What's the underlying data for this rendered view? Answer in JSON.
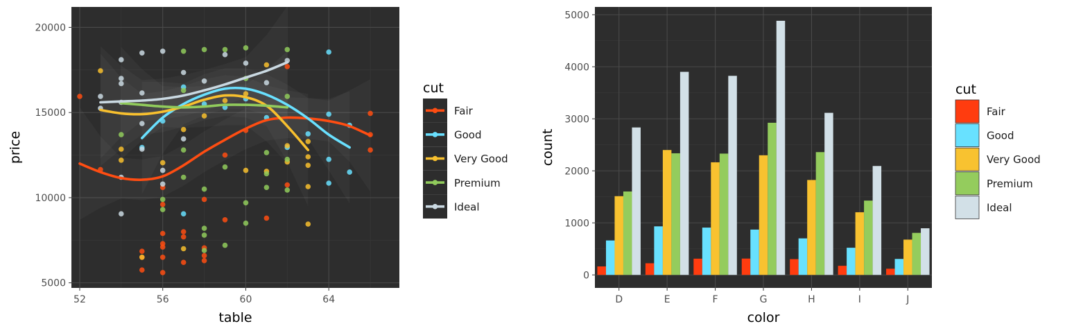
{
  "chart_data": [
    {
      "type": "scatter",
      "xlabel": "table",
      "ylabel": "price",
      "xlim": [
        51.6,
        67.4
      ],
      "ylim": [
        4700,
        21200
      ],
      "xticks": [
        52,
        56,
        60,
        64
      ],
      "yticks": [
        5000,
        10000,
        15000,
        20000
      ],
      "xtick_labels": [
        "52",
        "56",
        "60",
        "64"
      ],
      "ytick_labels": [
        "5000",
        "10000",
        "15000",
        "20000"
      ],
      "grid": true,
      "legend": {
        "title": "cut",
        "position": "right"
      },
      "series": [
        {
          "name": "Fair",
          "color": "#ff4d12",
          "points": [
            [
              52,
              15950
            ],
            [
              53,
              11650
            ],
            [
              55,
              6850
            ],
            [
              55,
              6500
            ],
            [
              55,
              5750
            ],
            [
              56,
              7900
            ],
            [
              56,
              7300
            ],
            [
              56,
              7100
            ],
            [
              56,
              6500
            ],
            [
              56,
              5600
            ],
            [
              56,
              9600
            ],
            [
              56,
              10600
            ],
            [
              57,
              8000
            ],
            [
              57,
              7700
            ],
            [
              57,
              6200
            ],
            [
              58,
              7050
            ],
            [
              58,
              6600
            ],
            [
              58,
              6300
            ],
            [
              58,
              9900
            ],
            [
              59,
              8700
            ],
            [
              59,
              12500
            ],
            [
              60,
              13950
            ],
            [
              61,
              8800
            ],
            [
              62,
              10750
            ],
            [
              62,
              17700
            ],
            [
              66,
              14950
            ],
            [
              66,
              13700
            ],
            [
              66,
              12800
            ]
          ],
          "trend": [
            [
              52,
              12000
            ],
            [
              53,
              11500
            ],
            [
              54,
              11150
            ],
            [
              55,
              11050
            ],
            [
              56,
              11250
            ],
            [
              57,
              11900
            ],
            [
              58,
              12700
            ],
            [
              59,
              13400
            ],
            [
              60,
              14050
            ],
            [
              61,
              14550
            ],
            [
              62,
              14700
            ],
            [
              63,
              14650
            ],
            [
              64,
              14500
            ],
            [
              65,
              14200
            ],
            [
              66,
              13650
            ]
          ]
        },
        {
          "name": "Good",
          "color": "#69e0ff",
          "points": [
            [
              55,
              12950
            ],
            [
              56,
              14500
            ],
            [
              57,
              9050
            ],
            [
              57,
              16500
            ],
            [
              58,
              15500
            ],
            [
              59,
              15300
            ],
            [
              60,
              15800
            ],
            [
              61,
              14700
            ],
            [
              62,
              12950
            ],
            [
              63,
              13750
            ],
            [
              64,
              18550
            ],
            [
              64,
              14900
            ],
            [
              64,
              12250
            ],
            [
              64,
              10850
            ],
            [
              65,
              14250
            ],
            [
              65,
              11500
            ]
          ],
          "trend": [
            [
              55,
              13500
            ],
            [
              56,
              14700
            ],
            [
              57,
              15500
            ],
            [
              58,
              16050
            ],
            [
              59,
              16400
            ],
            [
              60,
              16400
            ],
            [
              61,
              16050
            ],
            [
              62,
              15450
            ],
            [
              63,
              14650
            ],
            [
              64,
              13700
            ],
            [
              65,
              12950
            ]
          ]
        },
        {
          "name": "Very Good",
          "color": "#f8c02e",
          "points": [
            [
              53,
              17450
            ],
            [
              54,
              12850
            ],
            [
              54,
              12200
            ],
            [
              55,
              6500
            ],
            [
              56,
              12050
            ],
            [
              57,
              7000
            ],
            [
              57,
              14000
            ],
            [
              58,
              14800
            ],
            [
              59,
              15700
            ],
            [
              60,
              16100
            ],
            [
              60,
              11600
            ],
            [
              61,
              17800
            ],
            [
              61,
              11550
            ],
            [
              62,
              12100
            ],
            [
              62,
              13050
            ],
            [
              63,
              13300
            ],
            [
              63,
              12400
            ],
            [
              63,
              11900
            ],
            [
              63,
              10650
            ],
            [
              63,
              8450
            ]
          ],
          "trend": [
            [
              53,
              15150
            ],
            [
              54,
              14950
            ],
            [
              55,
              14900
            ],
            [
              56,
              15050
            ],
            [
              57,
              15350
            ],
            [
              58,
              15750
            ],
            [
              59,
              16000
            ],
            [
              60,
              15900
            ],
            [
              61,
              15400
            ],
            [
              62,
              14200
            ],
            [
              63,
              12800
            ]
          ]
        },
        {
          "name": "Premium",
          "color": "#91cb5c",
          "points": [
            [
              54,
              13700
            ],
            [
              56,
              9900
            ],
            [
              56,
              9300
            ],
            [
              57,
              12800
            ],
            [
              57,
              11200
            ],
            [
              57,
              16300
            ],
            [
              57,
              18600
            ],
            [
              58,
              8200
            ],
            [
              58,
              7800
            ],
            [
              58,
              6900
            ],
            [
              58,
              10500
            ],
            [
              58,
              18700
            ],
            [
              59,
              7200
            ],
            [
              59,
              11800
            ],
            [
              59,
              18700
            ],
            [
              60,
              9700
            ],
            [
              60,
              8500
            ],
            [
              60,
              18800
            ],
            [
              60,
              17000
            ],
            [
              61,
              12650
            ],
            [
              61,
              11400
            ],
            [
              61,
              10600
            ],
            [
              62,
              12250
            ],
            [
              62,
              10450
            ],
            [
              62,
              18700
            ],
            [
              62,
              15950
            ]
          ],
          "trend": [
            [
              54,
              15550
            ],
            [
              55,
              15450
            ],
            [
              56,
              15350
            ],
            [
              57,
              15300
            ],
            [
              58,
              15350
            ],
            [
              59,
              15450
            ],
            [
              60,
              15450
            ],
            [
              61,
              15400
            ],
            [
              62,
              15300
            ]
          ]
        },
        {
          "name": "Ideal",
          "color": "#cad9e2",
          "points": [
            [
              53,
              15950
            ],
            [
              53,
              15250
            ],
            [
              54,
              18100
            ],
            [
              54,
              17000
            ],
            [
              54,
              16700
            ],
            [
              54,
              15600
            ],
            [
              54,
              11200
            ],
            [
              54,
              9050
            ],
            [
              55,
              18500
            ],
            [
              55,
              16150
            ],
            [
              55,
              14350
            ],
            [
              55,
              12850
            ],
            [
              56,
              18600
            ],
            [
              56,
              11600
            ],
            [
              56,
              10800
            ],
            [
              57,
              17350
            ],
            [
              57,
              13450
            ],
            [
              58,
              16850
            ],
            [
              59,
              18400
            ],
            [
              60,
              17900
            ],
            [
              61,
              16750
            ],
            [
              62,
              18050
            ]
          ],
          "trend": [
            [
              53,
              15600
            ],
            [
              54,
              15650
            ],
            [
              55,
              15700
            ],
            [
              56,
              15800
            ],
            [
              57,
              16000
            ],
            [
              58,
              16300
            ],
            [
              59,
              16650
            ],
            [
              60,
              17050
            ],
            [
              61,
              17450
            ],
            [
              62,
              17950
            ]
          ]
        }
      ]
    },
    {
      "type": "bar",
      "xlabel": "color",
      "ylabel": "count",
      "categories": [
        "D",
        "E",
        "F",
        "G",
        "H",
        "I",
        "J"
      ],
      "ylim": [
        -250,
        5150
      ],
      "yticks": [
        0,
        1000,
        2000,
        3000,
        4000,
        5000
      ],
      "ytick_labels": [
        "0",
        "1000",
        "2000",
        "3000",
        "4000",
        "5000"
      ],
      "grid": true,
      "legend": {
        "title": "cut",
        "position": "right"
      },
      "series": [
        {
          "name": "Fair",
          "color": "#ff3c0f",
          "values": [
            163,
            224,
            312,
            314,
            303,
            175,
            119
          ]
        },
        {
          "name": "Good",
          "color": "#68e1ff",
          "values": [
            662,
            933,
            909,
            871,
            702,
            522,
            307
          ]
        },
        {
          "name": "Very Good",
          "color": "#f8c230",
          "values": [
            1513,
            2400,
            2164,
            2299,
            1824,
            1204,
            678
          ]
        },
        {
          "name": "Premium",
          "color": "#94cc5d",
          "values": [
            1603,
            2337,
            2331,
            2924,
            2360,
            1428,
            808
          ]
        },
        {
          "name": "Ideal",
          "color": "#d2e0e7",
          "values": [
            2834,
            3903,
            3826,
            4884,
            3115,
            2093,
            896
          ]
        }
      ]
    }
  ]
}
